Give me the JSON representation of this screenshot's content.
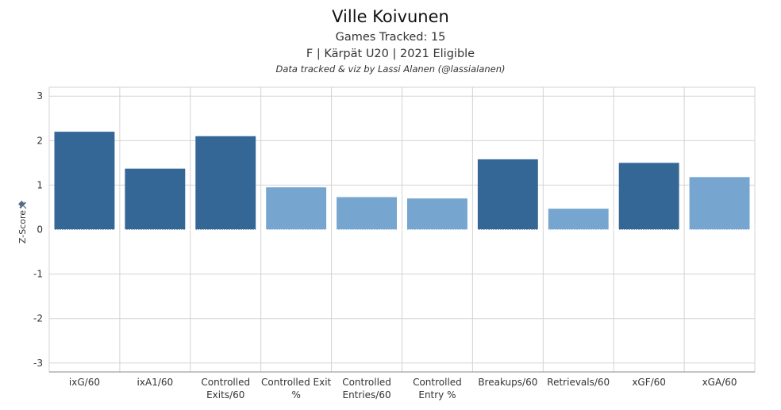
{
  "header": {
    "title": "Ville Koivunen",
    "games": "Games Tracked: 15",
    "info": "F | Kärpät U20 | 2021 Eligible",
    "credit": "Data tracked & viz by Lassi Alanen (@lassialanen)"
  },
  "chart_data": {
    "type": "bar",
    "title": "Ville Koivunen",
    "ylabel": "Z-Score",
    "xlabel": "",
    "ylim": [
      -3.2,
      3.2
    ],
    "yticks": [
      3,
      2,
      1,
      0,
      -1,
      -2,
      -3
    ],
    "grid": true,
    "categories": [
      [
        "ixG/60"
      ],
      [
        "ixA1/60"
      ],
      [
        "Controlled",
        "Exits/60"
      ],
      [
        "Controlled Exit",
        "%"
      ],
      [
        "Controlled",
        "Entries/60"
      ],
      [
        "Controlled",
        "Entry %"
      ],
      [
        "Breakups/60"
      ],
      [
        "Retrievals/60"
      ],
      [
        "xGF/60"
      ],
      [
        "xGA/60"
      ]
    ],
    "values": [
      2.2,
      1.37,
      2.1,
      0.95,
      0.73,
      0.7,
      1.58,
      0.47,
      1.5,
      1.18
    ],
    "colors": {
      "dark": "#356796",
      "light": "#76a6cf",
      "grid": "#d3d3d3",
      "axis": "#8a8a8a"
    },
    "bar_shade": [
      "dark",
      "dark",
      "dark",
      "light",
      "light",
      "light",
      "dark",
      "light",
      "dark",
      "light"
    ]
  },
  "icons": {
    "pin": "pin-icon"
  }
}
